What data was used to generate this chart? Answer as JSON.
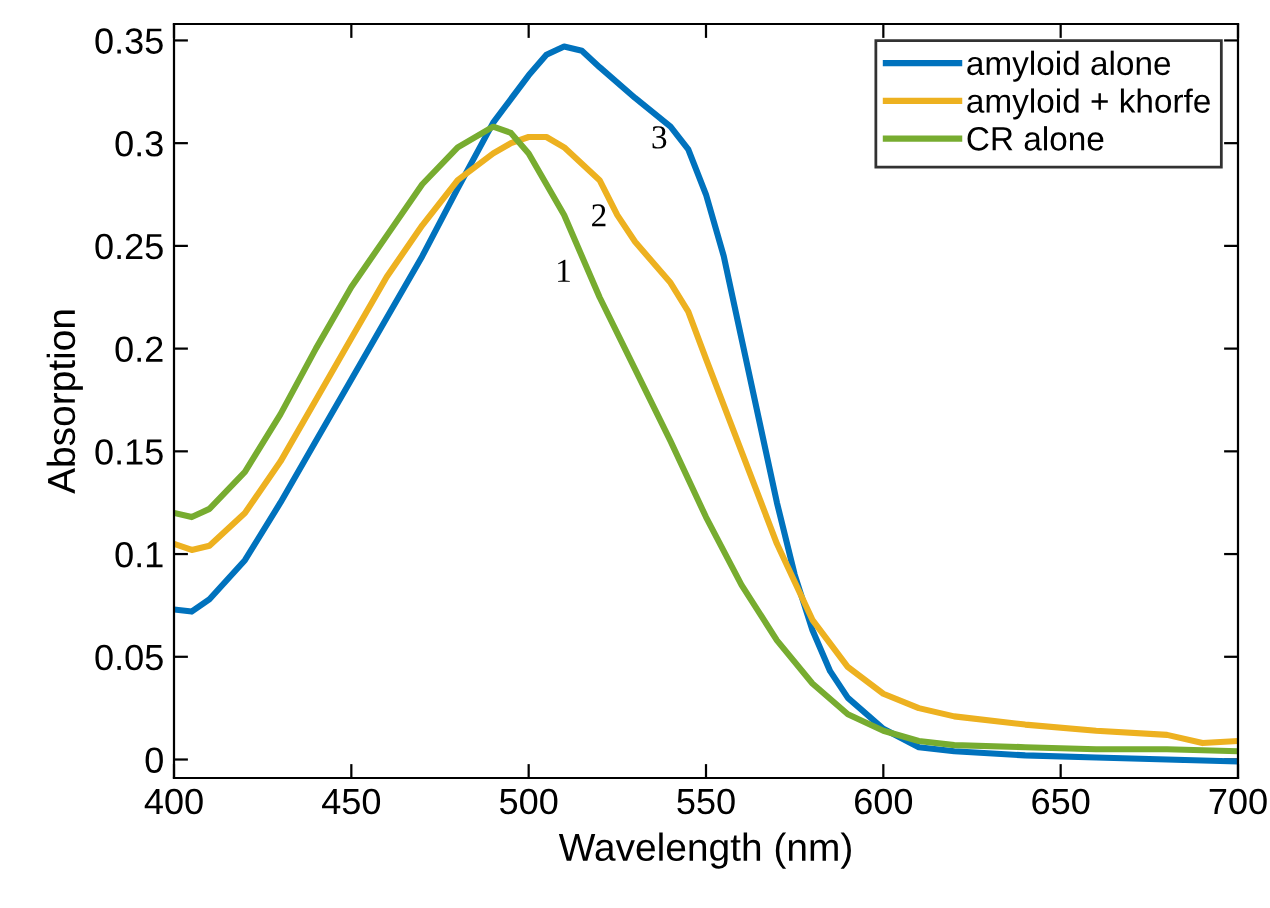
{
  "chart_data": {
    "type": "line",
    "xlabel": "Wavelength (nm)",
    "ylabel": "Absorption",
    "xlim": [
      400,
      700
    ],
    "ylim": [
      -0.009,
      0.358
    ],
    "xticks": [
      400,
      450,
      500,
      550,
      600,
      650,
      700
    ],
    "yticks": [
      0,
      0.05,
      0.1,
      0.15,
      0.2,
      0.25,
      0.3,
      0.35
    ],
    "grid": false,
    "legend": "top right",
    "marker": "none",
    "line_style": "solid",
    "series": [
      {
        "name": "amyloid alone",
        "color": "#0072bd",
        "x": [
          400,
          405,
          410,
          420,
          430,
          440,
          450,
          460,
          470,
          480,
          490,
          500,
          505,
          510,
          515,
          520,
          530,
          540,
          545,
          550,
          555,
          560,
          565,
          570,
          575,
          580,
          585,
          590,
          600,
          610,
          620,
          640,
          660,
          680,
          700
        ],
        "values": [
          0.073,
          0.072,
          0.078,
          0.097,
          0.125,
          0.155,
          0.185,
          0.215,
          0.245,
          0.278,
          0.31,
          0.333,
          0.343,
          0.347,
          0.345,
          0.337,
          0.322,
          0.308,
          0.297,
          0.275,
          0.245,
          0.205,
          0.165,
          0.125,
          0.09,
          0.063,
          0.043,
          0.03,
          0.015,
          0.006,
          0.004,
          0.002,
          0.001,
          0.0,
          -0.001
        ]
      },
      {
        "name": "amyloid + khorfe",
        "color": "#edb120",
        "x": [
          400,
          405,
          410,
          420,
          430,
          440,
          450,
          460,
          470,
          480,
          490,
          495,
          500,
          505,
          510,
          520,
          525,
          530,
          540,
          545,
          550,
          560,
          570,
          580,
          590,
          600,
          610,
          620,
          640,
          660,
          680,
          690,
          700
        ],
        "values": [
          0.105,
          0.102,
          0.104,
          0.12,
          0.145,
          0.175,
          0.205,
          0.235,
          0.26,
          0.282,
          0.295,
          0.3,
          0.303,
          0.303,
          0.298,
          0.282,
          0.265,
          0.252,
          0.232,
          0.218,
          0.195,
          0.15,
          0.105,
          0.068,
          0.045,
          0.032,
          0.025,
          0.021,
          0.017,
          0.014,
          0.012,
          0.008,
          0.009
        ]
      },
      {
        "name": "CR alone",
        "color": "#77ac30",
        "x": [
          400,
          405,
          410,
          420,
          430,
          440,
          450,
          460,
          470,
          480,
          490,
          495,
          500,
          510,
          520,
          530,
          540,
          550,
          560,
          570,
          580,
          590,
          600,
          610,
          620,
          640,
          660,
          680,
          700
        ],
        "values": [
          0.12,
          0.118,
          0.122,
          0.14,
          0.168,
          0.2,
          0.23,
          0.255,
          0.28,
          0.298,
          0.308,
          0.305,
          0.295,
          0.265,
          0.225,
          0.19,
          0.155,
          0.118,
          0.085,
          0.058,
          0.037,
          0.022,
          0.014,
          0.009,
          0.007,
          0.006,
          0.005,
          0.005,
          0.004
        ]
      }
    ],
    "annotations": [
      {
        "text": "1",
        "x": 520,
        "y": 0.225
      },
      {
        "text": "2",
        "x": 530,
        "y": 0.252
      },
      {
        "text": "3",
        "x": 547,
        "y": 0.29
      }
    ]
  }
}
